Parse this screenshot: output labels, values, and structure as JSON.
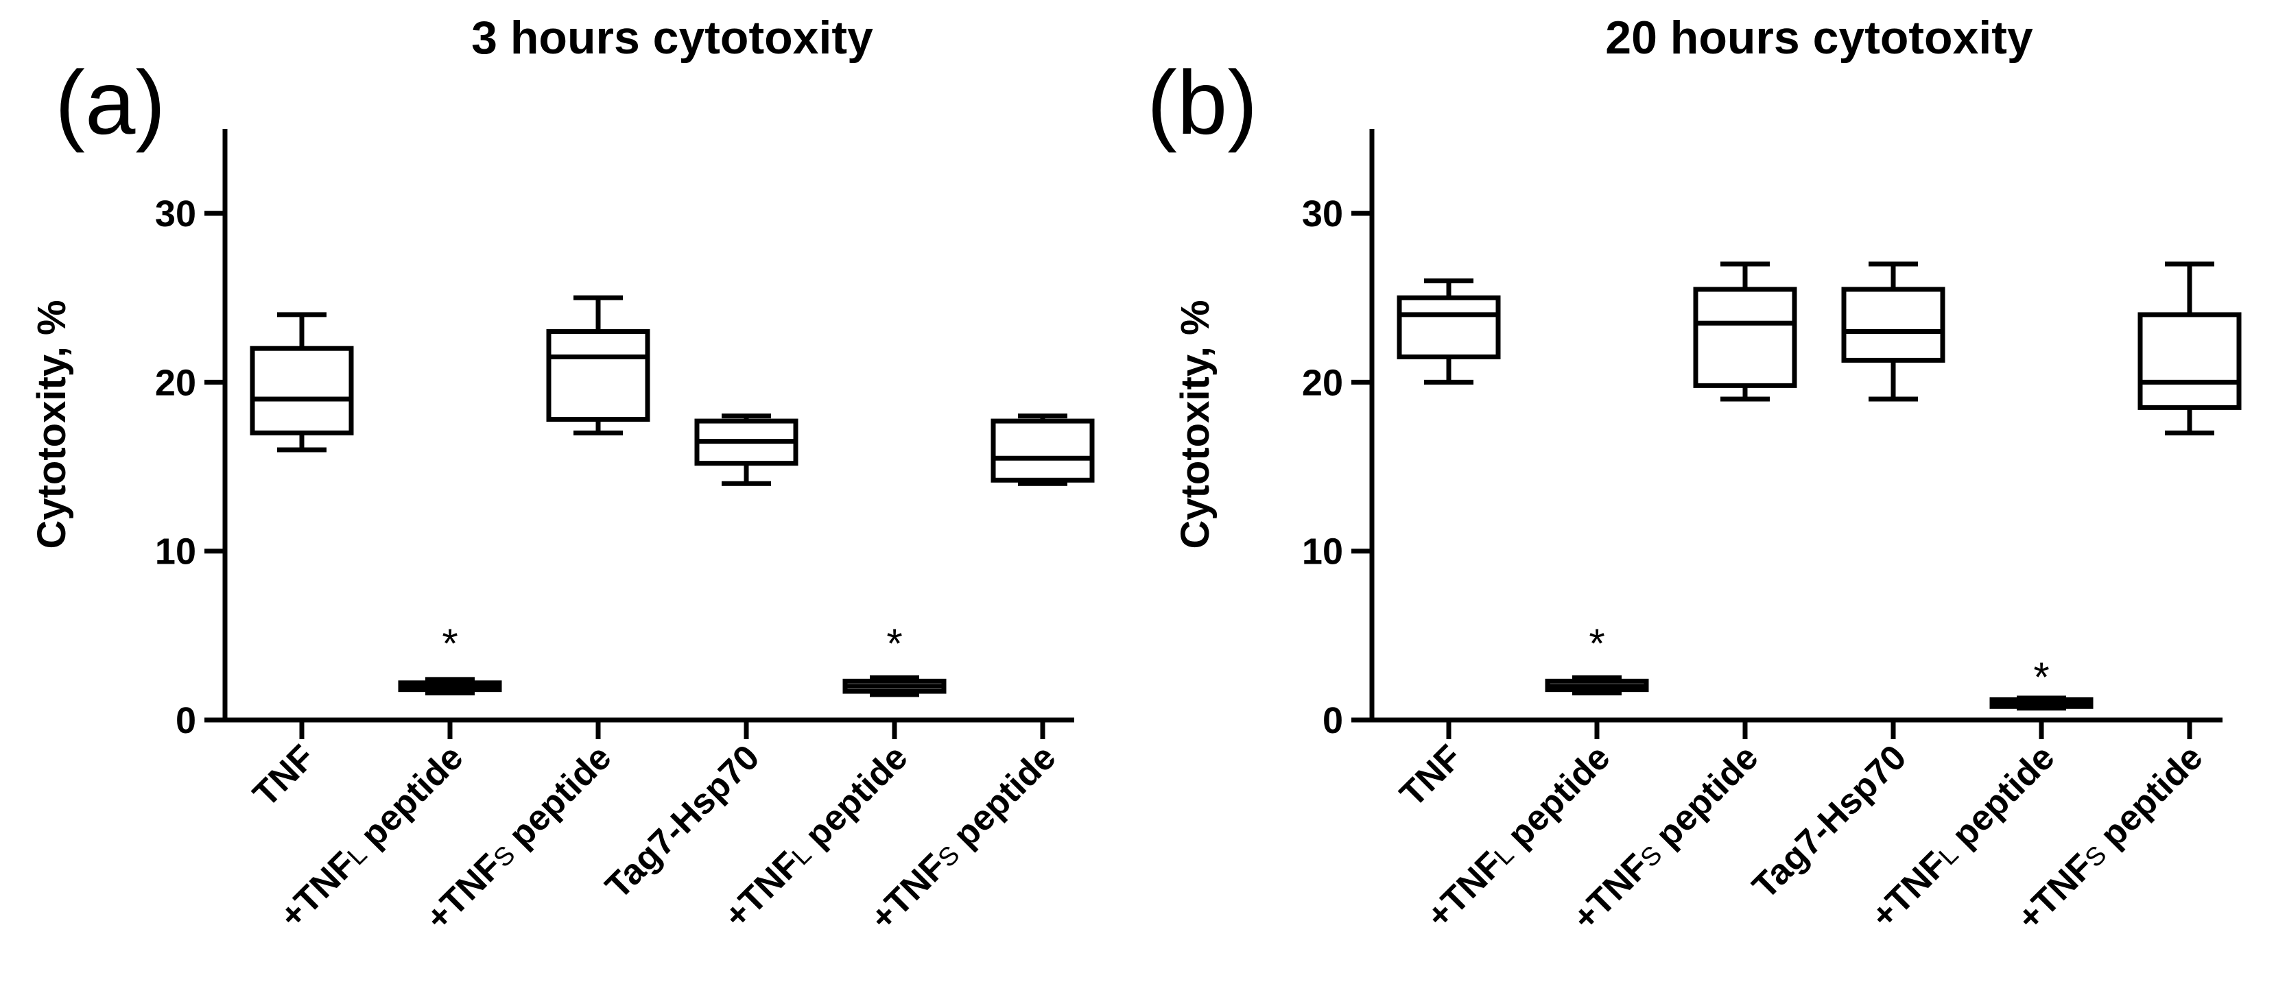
{
  "chart_data": [
    {
      "type": "boxplot",
      "panel_label": "(a)",
      "title": "3 hours cytotoxity",
      "ylabel": "Cytotoxity, %",
      "ylim": [
        0,
        35
      ],
      "yticks": [
        "0",
        "10",
        "20",
        "30"
      ],
      "grid": false,
      "categories": [
        {
          "base": "TNF",
          "sub": ""
        },
        {
          "base": "+TNF",
          "sub": "L",
          "tail": " peptide"
        },
        {
          "base": "+TNF",
          "sub": "S",
          "tail": " peptide"
        },
        {
          "base": "Tag7-Hsp70",
          "sub": ""
        },
        {
          "base": "+TNF",
          "sub": "L",
          "tail": " peptide"
        },
        {
          "base": "+TNF",
          "sub": "S",
          "tail": " peptide"
        }
      ],
      "boxes": [
        {
          "min": 16,
          "q1": 17,
          "median": 19,
          "q3": 22,
          "max": 24
        },
        {
          "min": 1.6,
          "q1": 1.8,
          "median": 2.0,
          "q3": 2.2,
          "max": 2.4
        },
        {
          "min": 17,
          "q1": 17.8,
          "median": 21.5,
          "q3": 23,
          "max": 25
        },
        {
          "min": 14,
          "q1": 15.2,
          "median": 16.5,
          "q3": 17.7,
          "max": 18
        },
        {
          "min": 1.5,
          "q1": 1.7,
          "median": 2.0,
          "q3": 2.3,
          "max": 2.5
        },
        {
          "min": 14,
          "q1": 14.2,
          "median": 15.5,
          "q3": 17.7,
          "max": 18
        }
      ],
      "annotations": [
        {
          "category_index": 1,
          "text": "*",
          "y": 5
        },
        {
          "category_index": 4,
          "text": "*",
          "y": 5
        }
      ]
    },
    {
      "type": "boxplot",
      "panel_label": "(b)",
      "title": "20 hours cytotoxity",
      "ylabel": "Cytotoxity, %",
      "ylim": [
        0,
        35
      ],
      "yticks": [
        "0",
        "10",
        "20",
        "30"
      ],
      "grid": false,
      "categories": [
        {
          "base": "TNF",
          "sub": ""
        },
        {
          "base": "+TNF",
          "sub": "L",
          "tail": " peptide"
        },
        {
          "base": "+TNF",
          "sub": "S",
          "tail": " peptide"
        },
        {
          "base": "Tag7-Hsp70",
          "sub": ""
        },
        {
          "base": "+TNF",
          "sub": "L",
          "tail": " peptide"
        },
        {
          "base": "+TNF",
          "sub": "S",
          "tail": " peptide"
        }
      ],
      "boxes": [
        {
          "min": 20,
          "q1": 21.5,
          "median": 24,
          "q3": 25,
          "max": 26
        },
        {
          "min": 1.6,
          "q1": 1.8,
          "median": 2.0,
          "q3": 2.3,
          "max": 2.5
        },
        {
          "min": 19,
          "q1": 19.8,
          "median": 23.5,
          "q3": 25.5,
          "max": 27
        },
        {
          "min": 19,
          "q1": 21.3,
          "median": 23,
          "q3": 25.5,
          "max": 27
        },
        {
          "min": 0.7,
          "q1": 0.8,
          "median": 1.0,
          "q3": 1.2,
          "max": 1.3
        },
        {
          "min": 17,
          "q1": 18.5,
          "median": 20,
          "q3": 24,
          "max": 27
        }
      ],
      "annotations": [
        {
          "category_index": 1,
          "text": "*",
          "y": 5
        },
        {
          "category_index": 4,
          "text": "*",
          "y": 3
        }
      ]
    }
  ]
}
